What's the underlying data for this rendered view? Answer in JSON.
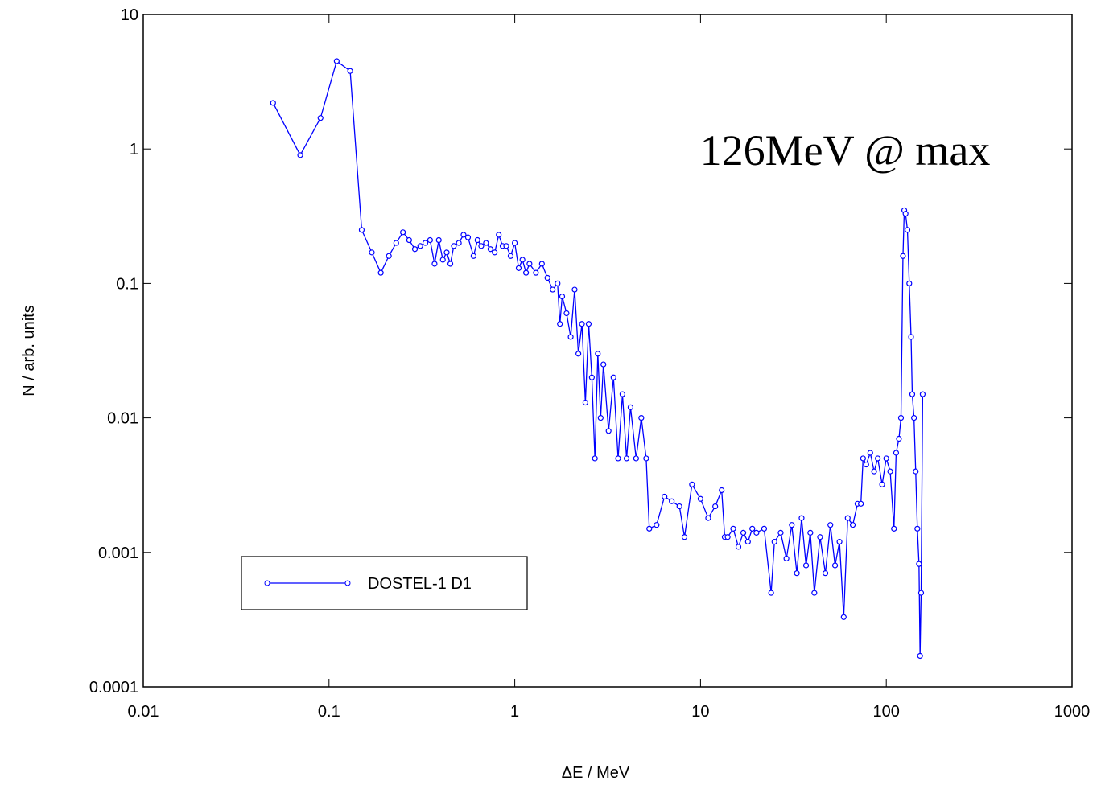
{
  "chart_data": {
    "type": "line",
    "annotation": "126MeV @ max",
    "xlabel": "ΔE / MeV",
    "ylabel": "N / arb. units",
    "xscale": "log",
    "yscale": "log",
    "xlim": [
      0.01,
      1000
    ],
    "ylim": [
      0.0001,
      10
    ],
    "xticks": [
      0.01,
      0.1,
      1,
      10,
      100,
      1000
    ],
    "yticks": [
      0.0001,
      0.001,
      0.01,
      0.1,
      1,
      10
    ],
    "legend": "lower left",
    "series": [
      {
        "name": "DOSTEL-1 D1",
        "color": "#0000ff",
        "x": [
          0.05,
          0.07,
          0.09,
          0.11,
          0.13,
          0.15,
          0.17,
          0.19,
          0.21,
          0.23,
          0.25,
          0.27,
          0.29,
          0.31,
          0.33,
          0.35,
          0.37,
          0.39,
          0.41,
          0.43,
          0.45,
          0.47,
          0.5,
          0.53,
          0.56,
          0.6,
          0.63,
          0.66,
          0.7,
          0.74,
          0.78,
          0.82,
          0.86,
          0.9,
          0.95,
          1.0,
          1.05,
          1.1,
          1.15,
          1.2,
          1.3,
          1.4,
          1.5,
          1.6,
          1.7,
          1.75,
          1.8,
          1.9,
          2.0,
          2.1,
          2.2,
          2.3,
          2.4,
          2.5,
          2.6,
          2.7,
          2.8,
          2.9,
          3.0,
          3.2,
          3.4,
          3.6,
          3.8,
          4.0,
          4.2,
          4.5,
          4.8,
          5.1,
          5.3,
          5.8,
          6.4,
          7.0,
          7.7,
          8.2,
          9.0,
          10,
          11,
          12,
          13,
          13.5,
          14,
          15,
          16,
          17,
          18,
          19,
          20,
          22,
          24,
          25,
          27,
          29,
          31,
          33,
          35,
          37,
          39,
          41,
          44,
          47,
          50,
          53,
          56,
          59,
          62,
          66,
          70,
          73,
          75,
          78,
          82,
          86,
          90,
          95,
          100,
          105,
          110,
          113,
          117,
          120,
          123,
          125,
          127,
          130,
          133,
          136,
          138,
          141,
          144,
          147,
          150,
          152,
          154,
          157
        ],
        "values": [
          2.2,
          0.9,
          1.7,
          4.5,
          3.8,
          0.25,
          0.17,
          0.12,
          0.16,
          0.2,
          0.24,
          0.21,
          0.18,
          0.19,
          0.2,
          0.21,
          0.14,
          0.21,
          0.15,
          0.17,
          0.14,
          0.19,
          0.2,
          0.23,
          0.22,
          0.16,
          0.21,
          0.19,
          0.2,
          0.18,
          0.17,
          0.23,
          0.19,
          0.19,
          0.16,
          0.2,
          0.13,
          0.15,
          0.12,
          0.14,
          0.12,
          0.14,
          0.11,
          0.09,
          0.1,
          0.05,
          0.08,
          0.06,
          0.04,
          0.09,
          0.03,
          0.05,
          0.013,
          0.05,
          0.02,
          0.005,
          0.03,
          0.01,
          0.025,
          0.008,
          0.02,
          0.005,
          0.015,
          0.005,
          0.012,
          0.005,
          0.01,
          0.005,
          0.0015,
          0.0016,
          0.0026,
          0.0024,
          0.0022,
          0.0013,
          0.0032,
          0.0025,
          0.0018,
          0.0022,
          0.0029,
          0.0013,
          0.0013,
          0.0015,
          0.0011,
          0.0014,
          0.0012,
          0.0015,
          0.0014,
          0.0015,
          0.0005,
          0.0012,
          0.0014,
          0.0009,
          0.0016,
          0.0007,
          0.0018,
          0.0008,
          0.0014,
          0.0005,
          0.0013,
          0.0007,
          0.0016,
          0.0008,
          0.0012,
          0.00033,
          0.0018,
          0.0016,
          0.0023,
          0.0023,
          0.005,
          0.0045,
          0.0055,
          0.004,
          0.005,
          0.0032,
          0.005,
          0.004,
          0.0015,
          0.0055,
          0.007,
          0.01,
          0.16,
          0.35,
          0.33,
          0.25,
          0.1,
          0.04,
          0.015,
          0.01,
          0.004,
          0.0015,
          0.00082,
          0.00017,
          0.0005,
          0.015
        ]
      }
    ]
  }
}
